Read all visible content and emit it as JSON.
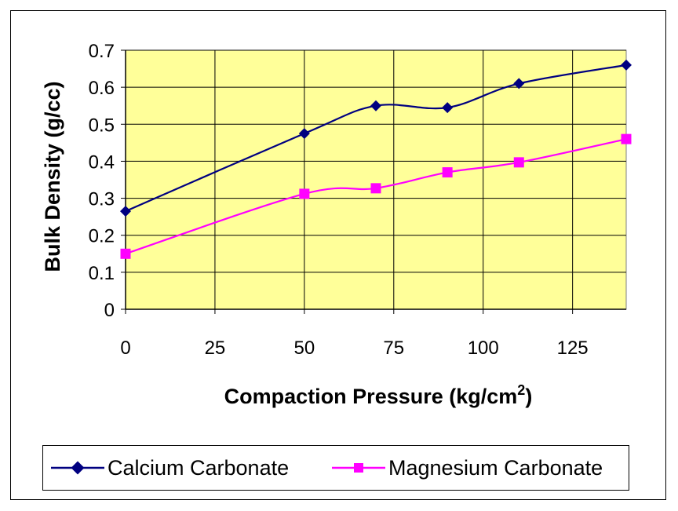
{
  "chart_data": {
    "type": "line",
    "xlabel": "Compaction Pressure (kg/cm",
    "xlabel_sup": "2",
    "xlabel_close": ")",
    "ylabel": "Bulk Density (g/cc)",
    "xlim": [
      0,
      140
    ],
    "ylim": [
      0,
      0.7
    ],
    "x_ticks": [
      0,
      25,
      50,
      75,
      100,
      125
    ],
    "x_tick_labels": [
      "0",
      "25",
      "50",
      "75",
      "100",
      "125"
    ],
    "y_ticks": [
      0,
      0.1,
      0.2,
      0.3,
      0.4,
      0.5,
      0.6,
      0.7
    ],
    "y_tick_labels": [
      "0",
      "0.1",
      "0.2",
      "0.3",
      "0.4",
      "0.5",
      "0.6",
      "0.7"
    ],
    "grid": true,
    "plot_background": "#FFFF99",
    "legend_position": "bottom",
    "series": [
      {
        "name": "Calcium Carbonate",
        "color": "#000080",
        "marker": "diamond",
        "x": [
          0,
          50,
          70,
          90,
          110,
          140
        ],
        "y": [
          0.265,
          0.475,
          0.55,
          0.545,
          0.61,
          0.66
        ]
      },
      {
        "name": "Magnesium Carbonate",
        "color": "#FF00FF",
        "marker": "square",
        "x": [
          0,
          50,
          70,
          90,
          110,
          140
        ],
        "y": [
          0.15,
          0.312,
          0.327,
          0.37,
          0.397,
          0.46
        ]
      }
    ]
  }
}
